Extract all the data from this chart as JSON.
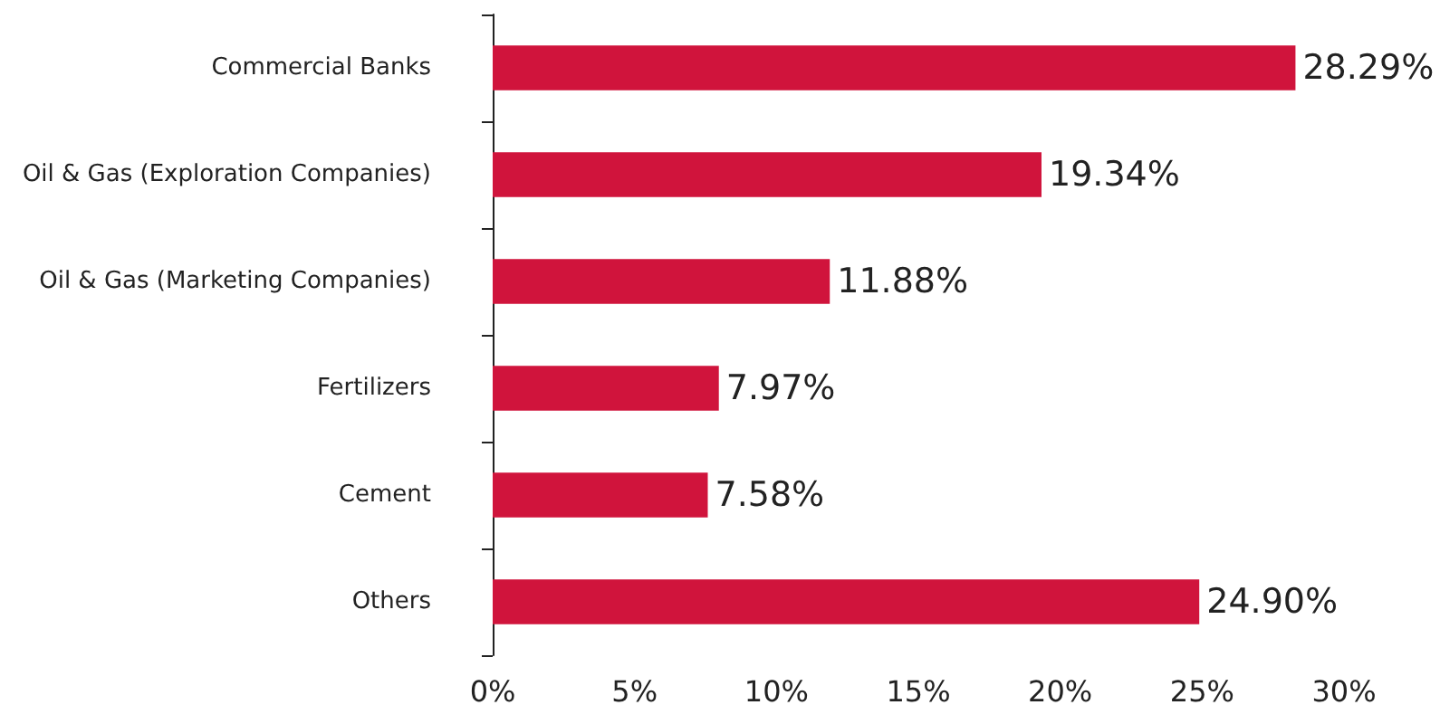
{
  "chart_data": {
    "type": "bar",
    "orientation": "horizontal",
    "categories": [
      "Commercial Banks",
      "Oil & Gas (Exploration Companies)",
      "Oil & Gas (Marketing Companies)",
      "Fertilizers",
      "Cement",
      "Others"
    ],
    "values": [
      28.29,
      19.34,
      11.88,
      7.97,
      7.58,
      24.9
    ],
    "value_labels": [
      "28.29%",
      "19.34%",
      "11.88%",
      "7.97%",
      "7.58%",
      "24.90%"
    ],
    "color": "#d0143c",
    "xlim": [
      0,
      30
    ],
    "xticks": [
      {
        "value": 0,
        "label": "0%"
      },
      {
        "value": 5,
        "label": "5%"
      },
      {
        "value": 10,
        "label": "10%"
      },
      {
        "value": 15,
        "label": "15%"
      },
      {
        "value": 20,
        "label": "20%"
      },
      {
        "value": 25,
        "label": "25%"
      },
      {
        "value": 30,
        "label": "30%"
      }
    ],
    "grid": false
  }
}
